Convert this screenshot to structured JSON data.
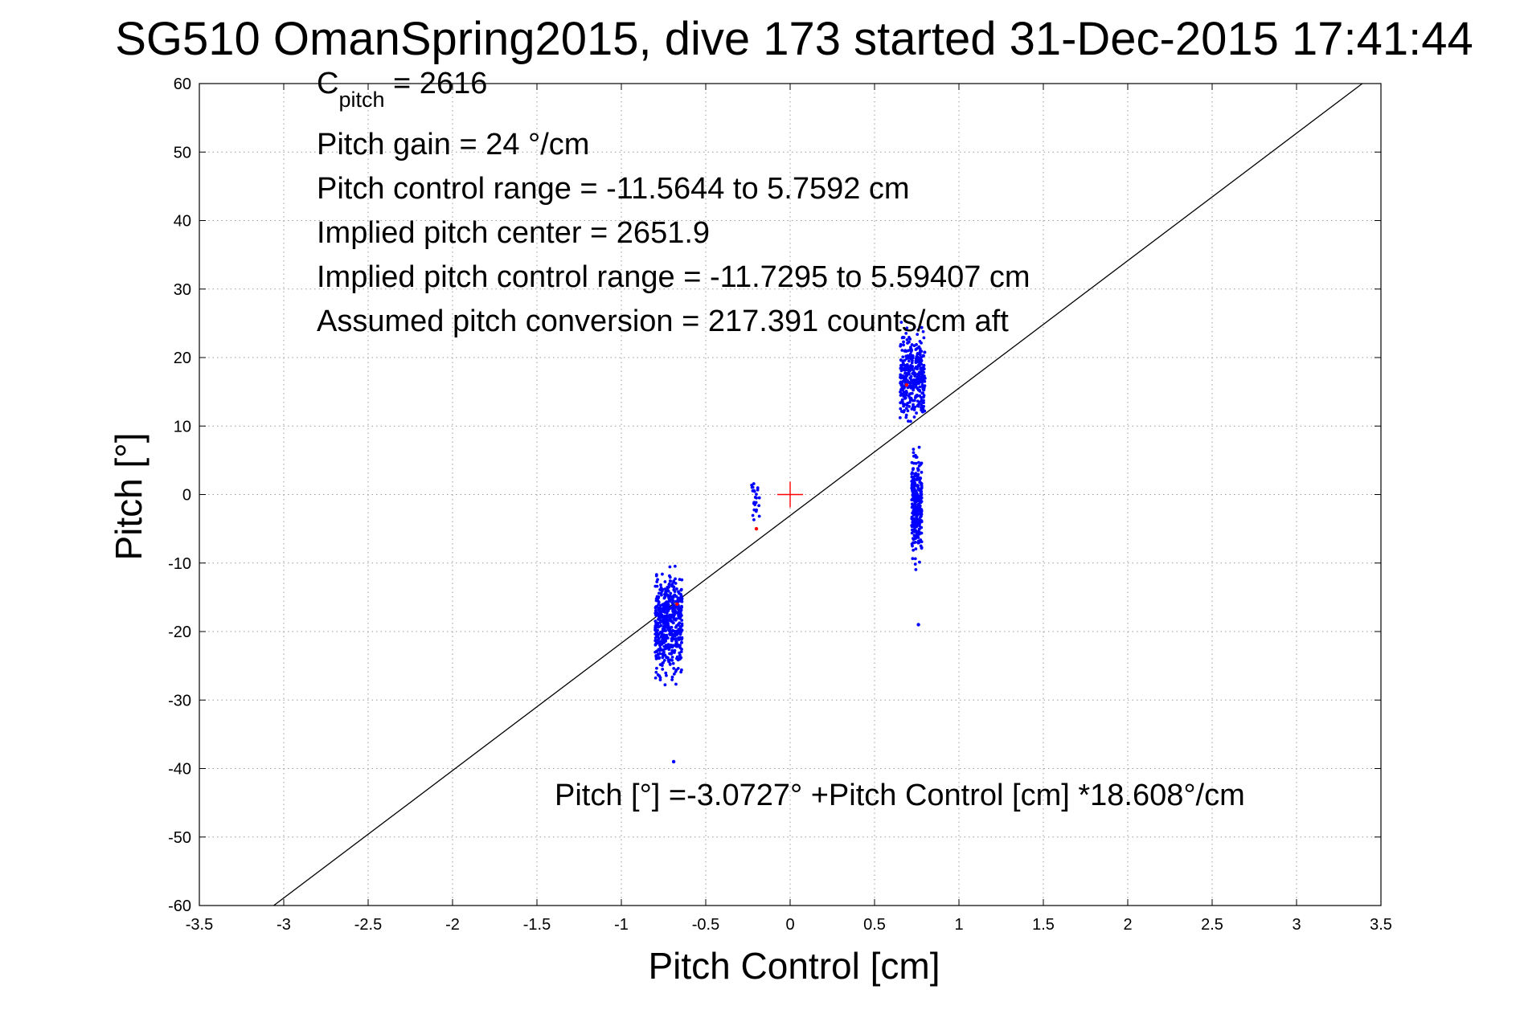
{
  "chart_data": {
    "type": "scatter",
    "title": "SG510 OmanSpring2015, dive 173 started 31-Dec-2015 17:41:44",
    "xlabel": "Pitch Control [cm]",
    "ylabel": "Pitch [°]",
    "xlim": [
      -3.5,
      3.5
    ],
    "ylim": [
      -60,
      60
    ],
    "x_ticks": [
      -3.5,
      -3,
      -2.5,
      -2,
      -1.5,
      -1,
      -0.5,
      0,
      0.5,
      1,
      1.5,
      2,
      2.5,
      3,
      3.5
    ],
    "y_ticks": [
      -60,
      -50,
      -40,
      -30,
      -20,
      -10,
      0,
      10,
      20,
      30,
      40,
      50,
      60
    ],
    "grid": true,
    "annotations": {
      "c_pitch_main": "C",
      "c_pitch_sub": "pitch",
      "c_pitch_value": " = 2616",
      "pitch_gain": "Pitch gain = 24 °/cm",
      "pitch_control_range": "Pitch control range = -11.5644 to 5.7592 cm",
      "implied_pitch_center": "Implied pitch center = 2651.9",
      "implied_pitch_control_range": "Implied pitch control range = -11.7295 to 5.59407 cm",
      "assumed_pitch_conversion": "Assumed pitch conversion = 217.391 counts/cm aft",
      "fit_equation": "Pitch [°] =-3.0727° +Pitch Control [cm] *18.608°/cm"
    },
    "fit_line": {
      "intercept": -3.0727,
      "slope": 18.608,
      "color": "#000000"
    },
    "center_marker": {
      "x": 0,
      "y": 0,
      "color": "#ff0000"
    },
    "series": [
      {
        "color": "#0000ff",
        "clusters": [
          {
            "x_min": -0.8,
            "x_max": -0.64,
            "y_min": -29,
            "y_max": -9,
            "count": 520
          },
          {
            "x_min": -0.23,
            "x_max": -0.18,
            "y_min": -6,
            "y_max": 5,
            "count": 24
          },
          {
            "x_min": 0.65,
            "x_max": 0.8,
            "y_min": 9,
            "y_max": 26,
            "count": 360
          },
          {
            "x_min": 0.72,
            "x_max": 0.78,
            "y_min": -12,
            "y_max": 8,
            "count": 300
          }
        ],
        "points": [
          {
            "x": -0.69,
            "y": -39
          },
          {
            "x": 0.76,
            "y": -19
          }
        ]
      },
      {
        "color": "#ff0000",
        "points": [
          {
            "x": -0.67,
            "y": -16
          },
          {
            "x": -0.2,
            "y": -5
          },
          {
            "x": 0.69,
            "y": 16
          }
        ]
      }
    ]
  }
}
